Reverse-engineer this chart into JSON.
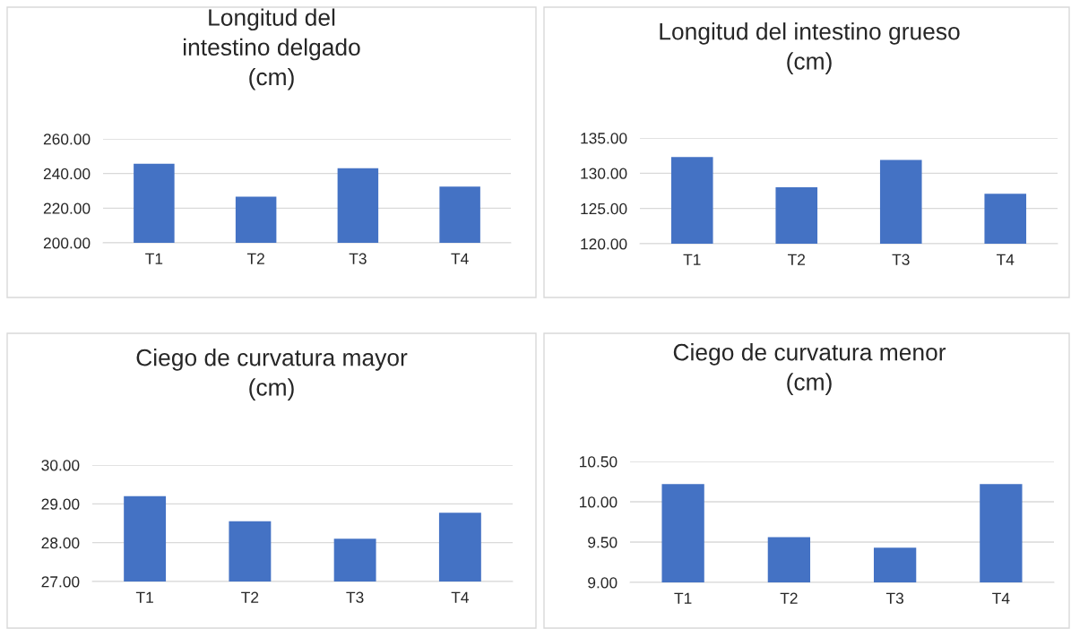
{
  "chart_data": [
    {
      "type": "bar",
      "title": "Longitud del intestino delgado (cm)",
      "categories": [
        "T1",
        "T2",
        "T3",
        "T4"
      ],
      "values": [
        245.7,
        226.6,
        243.1,
        232.5
      ],
      "color": "#4472c4",
      "ylim": [
        200,
        260
      ],
      "yticks": [
        {
          "value": 200,
          "label": "200.00"
        },
        {
          "value": 220,
          "label": "220.00"
        },
        {
          "value": 240,
          "label": "240.00"
        },
        {
          "value": 260,
          "label": "260.00"
        }
      ],
      "grid": "y",
      "legend": false
    },
    {
      "type": "bar",
      "title": "Longitud del intestino grueso (cm)",
      "categories": [
        "T1",
        "T2",
        "T3",
        "T4"
      ],
      "values": [
        132.3,
        128.0,
        131.9,
        127.1
      ],
      "color": "#4472c4",
      "ylim": [
        120,
        135
      ],
      "yticks": [
        {
          "value": 120,
          "label": "120.00"
        },
        {
          "value": 125,
          "label": "125.00"
        },
        {
          "value": 130,
          "label": "130.00"
        },
        {
          "value": 135,
          "label": "135.00"
        }
      ],
      "grid": "y",
      "legend": false
    },
    {
      "type": "bar",
      "title": "Ciego de curvatura mayor (cm)",
      "categories": [
        "T1",
        "T2",
        "T3",
        "T4"
      ],
      "values": [
        29.2,
        28.55,
        28.1,
        28.77
      ],
      "color": "#4472c4",
      "ylim": [
        27,
        30
      ],
      "yticks": [
        {
          "value": 27,
          "label": "27.00"
        },
        {
          "value": 28,
          "label": "28.00"
        },
        {
          "value": 29,
          "label": "29.00"
        },
        {
          "value": 30,
          "label": "30.00"
        }
      ],
      "grid": "y",
      "legend": false
    },
    {
      "type": "bar",
      "title": "Ciego de curvatura menor (cm)",
      "categories": [
        "T1",
        "T2",
        "T3",
        "T4"
      ],
      "values": [
        10.22,
        9.56,
        9.43,
        10.22
      ],
      "color": "#4472c4",
      "ylim": [
        9,
        10.5
      ],
      "yticks": [
        {
          "value": 9,
          "label": "9.00"
        },
        {
          "value": 9.5,
          "label": "9.50"
        },
        {
          "value": 10,
          "label": "10.00"
        },
        {
          "value": 10.5,
          "label": "10.50"
        }
      ],
      "grid": "y",
      "legend": false
    }
  ]
}
